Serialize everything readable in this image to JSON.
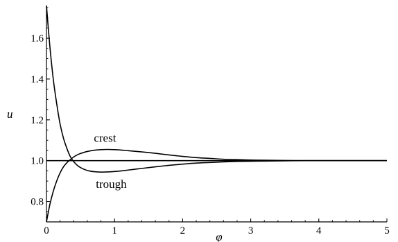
{
  "chart_data": {
    "type": "line",
    "title": "",
    "xlabel": "φ",
    "ylabel": "u",
    "xlim": [
      0,
      5
    ],
    "ylim": [
      0.7,
      1.76
    ],
    "grid": false,
    "legend": "none",
    "x_ticks": [
      0,
      1,
      2,
      3,
      4,
      5
    ],
    "x_tick_labels": [
      "0",
      "1",
      "2",
      "3",
      "4",
      "5"
    ],
    "y_ticks": [
      0.8,
      1.0,
      1.2,
      1.4,
      1.6
    ],
    "y_tick_labels": [
      "0.8",
      "1.0",
      "1.2",
      "1.4",
      "1.6"
    ],
    "reference_line": {
      "y": 1.0
    },
    "annotations": [
      {
        "text": "crest",
        "x": 0.92,
        "y": 1.065
      },
      {
        "text": "trough",
        "x": 0.95,
        "y": 0.935
      }
    ],
    "series": [
      {
        "name": "crest",
        "x": [
          0,
          0.05,
          0.1,
          0.15,
          0.2,
          0.25,
          0.3,
          0.35,
          0.4,
          0.45,
          0.5,
          0.6,
          0.7,
          0.8,
          0.9,
          1.0,
          1.1,
          1.2,
          1.4,
          1.6,
          1.8,
          2.0,
          2.2,
          2.4,
          2.6,
          2.8,
          3.0,
          3.2,
          3.5,
          3.8,
          4.0,
          4.5,
          5.0
        ],
        "y": [
          0.7,
          0.785,
          0.85,
          0.9,
          0.94,
          0.97,
          0.99,
          1.005,
          1.018,
          1.028,
          1.035,
          1.045,
          1.051,
          1.054,
          1.055,
          1.054,
          1.052,
          1.049,
          1.043,
          1.036,
          1.028,
          1.021,
          1.015,
          1.011,
          1.007,
          1.005,
          1.003,
          1.002,
          1.001,
          1.0,
          1.0,
          1.0,
          1.0
        ]
      },
      {
        "name": "trough",
        "x": [
          0,
          0.05,
          0.1,
          0.15,
          0.2,
          0.25,
          0.3,
          0.35,
          0.4,
          0.45,
          0.5,
          0.6,
          0.7,
          0.8,
          0.9,
          1.0,
          1.1,
          1.2,
          1.4,
          1.6,
          1.8,
          2.0,
          2.2,
          2.4,
          2.6,
          2.8,
          3.0,
          3.2,
          3.5,
          3.8,
          4.0,
          4.5,
          5.0
        ],
        "y": [
          1.76,
          1.56,
          1.4,
          1.28,
          1.18,
          1.11,
          1.06,
          1.02,
          0.995,
          0.978,
          0.966,
          0.952,
          0.946,
          0.944,
          0.945,
          0.947,
          0.95,
          0.954,
          0.962,
          0.97,
          0.977,
          0.983,
          0.988,
          0.991,
          0.994,
          0.996,
          0.997,
          0.998,
          0.999,
          1.0,
          1.0,
          1.0,
          1.0
        ]
      }
    ]
  }
}
